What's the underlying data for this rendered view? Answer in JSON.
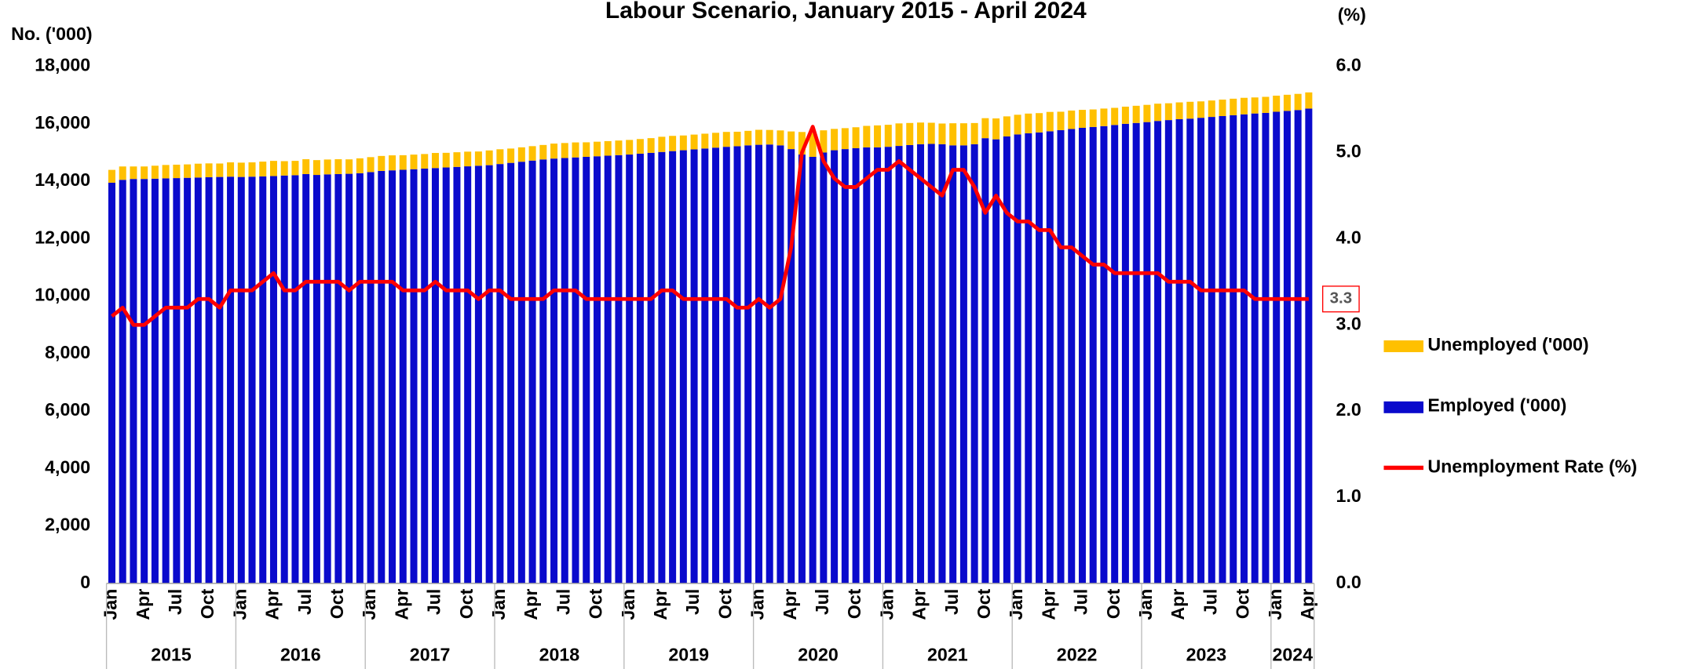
{
  "chart_data": {
    "type": "bar",
    "stacked": true,
    "title": "Labour Scenario, January 2015 - April 2024",
    "ylabel": "No. ('000)",
    "y2label": "(%)",
    "categories": [
      "Jan",
      null,
      null,
      "Apr",
      null,
      null,
      "Jul",
      null,
      null,
      "Oct",
      null,
      null,
      "Jan",
      null,
      null,
      "Apr",
      null,
      null,
      "Jul",
      null,
      null,
      "Oct",
      null,
      null,
      "Jan",
      null,
      null,
      "Apr",
      null,
      null,
      "Jul",
      null,
      null,
      "Oct",
      null,
      null,
      "Jan",
      null,
      null,
      "Apr",
      null,
      null,
      "Jul",
      null,
      null,
      "Oct",
      null,
      null,
      "Jan",
      null,
      null,
      "Apr",
      null,
      null,
      "Jul",
      null,
      null,
      "Oct",
      null,
      null,
      "Jan",
      null,
      null,
      "Apr",
      null,
      null,
      "Jul",
      null,
      null,
      "Oct",
      null,
      null,
      "Jan",
      null,
      null,
      "Apr",
      null,
      null,
      "Jul",
      null,
      null,
      "Oct",
      null,
      null,
      "Jan",
      null,
      null,
      "Apr",
      null,
      null,
      "Jul",
      null,
      null,
      "Oct",
      null,
      null,
      "Jan",
      null,
      null,
      "Apr",
      null,
      null,
      "Jul",
      null,
      null,
      "Oct",
      null,
      null,
      "Jan",
      null,
      null,
      "Apr"
    ],
    "years": [
      "2015",
      "2016",
      "2017",
      "2018",
      "2019",
      "2020",
      "2021",
      "2022",
      "2023",
      "2024"
    ],
    "series": [
      {
        "name": "Unemployed ('000)",
        "color": "#ffc000",
        "values": [
          446,
          465,
          435,
          435,
          451,
          467,
          467,
          467,
          482,
          482,
          468,
          498,
          498,
          498,
          514,
          529,
          500,
          500,
          517,
          516,
          517,
          517,
          502,
          518,
          520,
          521,
          522,
          507,
          508,
          508,
          525,
          510,
          510,
          511,
          496,
          513,
          514,
          499,
          501,
          502,
          503,
          521,
          521,
          522,
          506,
          507,
          508,
          508,
          509,
          510,
          511,
          529,
          530,
          514,
          515,
          516,
          517,
          518,
          504,
          505,
          521,
          506,
          520,
          614,
          785,
          832,
          773,
          743,
          729,
          730,
          748,
          765,
          766,
          784,
          769,
          754,
          737,
          720,
          769,
          769,
          737,
          696,
          728,
          699,
          685,
          686,
          672,
          674,
          641,
          642,
          626,
          610,
          611,
          596,
          597,
          598,
          600,
          601,
          585,
          586,
          587,
          571,
          572,
          573,
          574,
          575,
          558,
          559,
          560,
          561,
          562,
          564
        ]
      },
      {
        "name": "Employed ('000)",
        "color": "#0a0acc",
        "values": [
          13950,
          14050,
          14080,
          14080,
          14090,
          14100,
          14110,
          14120,
          14130,
          14140,
          14150,
          14160,
          14150,
          14160,
          14170,
          14180,
          14200,
          14210,
          14250,
          14220,
          14240,
          14250,
          14260,
          14280,
          14320,
          14360,
          14380,
          14400,
          14420,
          14440,
          14460,
          14480,
          14500,
          14520,
          14540,
          14560,
          14600,
          14640,
          14680,
          14720,
          14760,
          14790,
          14810,
          14830,
          14850,
          14870,
          14890,
          14910,
          14930,
          14960,
          14990,
          15020,
          15050,
          15080,
          15110,
          15140,
          15170,
          15200,
          15220,
          15250,
          15270,
          15280,
          15250,
          15120,
          14930,
          14850,
          15000,
          15080,
          15120,
          15150,
          15180,
          15180,
          15200,
          15230,
          15260,
          15290,
          15300,
          15290,
          15250,
          15250,
          15290,
          15500,
          15460,
          15560,
          15630,
          15670,
          15700,
          15740,
          15780,
          15820,
          15860,
          15890,
          15920,
          15960,
          16000,
          16030,
          16060,
          16100,
          16130,
          16160,
          16180,
          16210,
          16240,
          16270,
          16300,
          16330,
          16360,
          16380,
          16420,
          16450,
          16480,
          16530
        ]
      },
      {
        "name": "Unemployment Rate (%)",
        "color": "#ff0000",
        "type": "line",
        "axis": "y2",
        "values": [
          3.1,
          3.2,
          3.0,
          3.0,
          3.1,
          3.2,
          3.2,
          3.2,
          3.3,
          3.3,
          3.2,
          3.4,
          3.4,
          3.4,
          3.5,
          3.6,
          3.4,
          3.4,
          3.5,
          3.5,
          3.5,
          3.5,
          3.4,
          3.5,
          3.5,
          3.5,
          3.5,
          3.4,
          3.4,
          3.4,
          3.5,
          3.4,
          3.4,
          3.4,
          3.3,
          3.4,
          3.4,
          3.3,
          3.3,
          3.3,
          3.3,
          3.4,
          3.4,
          3.4,
          3.3,
          3.3,
          3.3,
          3.3,
          3.3,
          3.3,
          3.3,
          3.4,
          3.4,
          3.3,
          3.3,
          3.3,
          3.3,
          3.3,
          3.2,
          3.2,
          3.3,
          3.2,
          3.3,
          3.9,
          5.0,
          5.3,
          4.9,
          4.7,
          4.6,
          4.6,
          4.7,
          4.8,
          4.8,
          4.9,
          4.8,
          4.7,
          4.6,
          4.5,
          4.8,
          4.8,
          4.6,
          4.3,
          4.5,
          4.3,
          4.2,
          4.2,
          4.1,
          4.1,
          3.9,
          3.9,
          3.8,
          3.7,
          3.7,
          3.6,
          3.6,
          3.6,
          3.6,
          3.6,
          3.5,
          3.5,
          3.5,
          3.4,
          3.4,
          3.4,
          3.4,
          3.4,
          3.3,
          3.3,
          3.3,
          3.3,
          3.3,
          3.3
        ]
      }
    ],
    "ylim": [
      0,
      18000
    ],
    "yticks": [
      0,
      {
        "value": 2000,
        "label": "2,000"
      },
      {
        "value": 4000,
        "label": "4,000"
      },
      {
        "value": 6000,
        "label": "6,000"
      },
      {
        "value": 8000,
        "label": "8,000"
      },
      {
        "value": 10000,
        "label": "10,000"
      },
      {
        "value": 12000,
        "label": "12,000"
      },
      {
        "value": 14000,
        "label": "14,000"
      },
      {
        "value": 16000,
        "label": "16,000"
      },
      {
        "value": 18000,
        "label": "18,000"
      }
    ],
    "y2lim": [
      0,
      6
    ],
    "y2ticks": [
      {
        "value": 0,
        "label": "0.0"
      },
      {
        "value": 1,
        "label": "1.0"
      },
      {
        "value": 2,
        "label": "2.0"
      },
      {
        "value": 3,
        "label": "3.0"
      },
      {
        "value": 4,
        "label": "4.0"
      },
      {
        "value": 5,
        "label": "5.0"
      },
      {
        "value": 6,
        "label": "6.0"
      }
    ],
    "legend": "right"
  }
}
